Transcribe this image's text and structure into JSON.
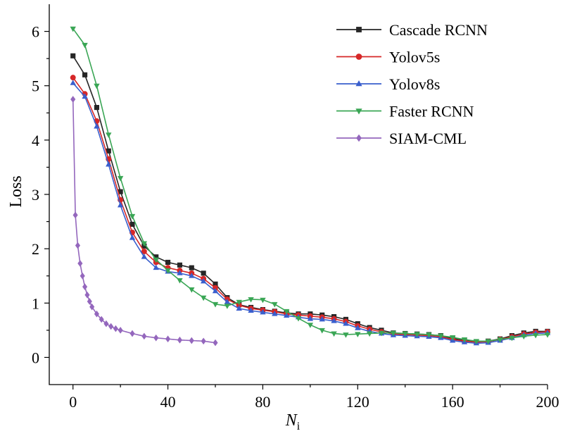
{
  "chart_data": {
    "type": "line",
    "title": "",
    "xlabel": "N",
    "xlabel_sub": "i",
    "ylabel": "Loss",
    "xlim": [
      -10,
      200
    ],
    "ylim": [
      -0.5,
      6.5
    ],
    "xticks": [
      0,
      40,
      80,
      120,
      160,
      200
    ],
    "yticks": [
      0,
      1,
      2,
      3,
      4,
      5,
      6
    ],
    "grid": false,
    "legend_position": "top-right",
    "series": [
      {
        "name": "Cascade RCNN",
        "color": "#262626",
        "marker": "square",
        "x": [
          0,
          5,
          10,
          15,
          20,
          25,
          30,
          35,
          40,
          45,
          50,
          55,
          60,
          65,
          70,
          75,
          80,
          85,
          90,
          95,
          100,
          105,
          110,
          115,
          120,
          125,
          130,
          135,
          140,
          145,
          150,
          155,
          160,
          165,
          170,
          175,
          180,
          185,
          190,
          195,
          200
        ],
        "y": [
          5.55,
          5.2,
          4.6,
          3.8,
          3.05,
          2.45,
          2.05,
          1.85,
          1.75,
          1.7,
          1.65,
          1.55,
          1.35,
          1.1,
          0.97,
          0.92,
          0.88,
          0.85,
          0.82,
          0.8,
          0.8,
          0.78,
          0.75,
          0.7,
          0.62,
          0.55,
          0.5,
          0.45,
          0.44,
          0.43,
          0.42,
          0.4,
          0.35,
          0.31,
          0.29,
          0.3,
          0.34,
          0.4,
          0.45,
          0.48,
          0.48
        ]
      },
      {
        "name": "Yolov5s",
        "color": "#d62728",
        "marker": "circle",
        "x": [
          0,
          5,
          10,
          15,
          20,
          25,
          30,
          35,
          40,
          45,
          50,
          55,
          60,
          65,
          70,
          75,
          80,
          85,
          90,
          95,
          100,
          105,
          110,
          115,
          120,
          125,
          130,
          135,
          140,
          145,
          150,
          155,
          160,
          165,
          170,
          175,
          180,
          185,
          190,
          195,
          200
        ],
        "y": [
          5.15,
          4.85,
          4.35,
          3.65,
          2.9,
          2.3,
          1.95,
          1.75,
          1.65,
          1.6,
          1.55,
          1.45,
          1.28,
          1.07,
          0.96,
          0.9,
          0.87,
          0.84,
          0.8,
          0.78,
          0.76,
          0.74,
          0.71,
          0.66,
          0.58,
          0.52,
          0.47,
          0.43,
          0.42,
          0.41,
          0.4,
          0.38,
          0.33,
          0.3,
          0.28,
          0.29,
          0.33,
          0.38,
          0.43,
          0.46,
          0.47
        ]
      },
      {
        "name": "Yolov8s",
        "color": "#3a5fcd",
        "marker": "triangle-up",
        "x": [
          0,
          5,
          10,
          15,
          20,
          25,
          30,
          35,
          40,
          45,
          50,
          55,
          60,
          65,
          70,
          75,
          80,
          85,
          90,
          95,
          100,
          105,
          110,
          115,
          120,
          125,
          130,
          135,
          140,
          145,
          150,
          155,
          160,
          165,
          170,
          175,
          180,
          185,
          190,
          195,
          200
        ],
        "y": [
          5.05,
          4.8,
          4.25,
          3.55,
          2.8,
          2.2,
          1.85,
          1.65,
          1.58,
          1.55,
          1.5,
          1.4,
          1.22,
          1.02,
          0.9,
          0.86,
          0.83,
          0.8,
          0.77,
          0.74,
          0.71,
          0.7,
          0.67,
          0.62,
          0.54,
          0.48,
          0.44,
          0.41,
          0.4,
          0.39,
          0.38,
          0.36,
          0.31,
          0.28,
          0.26,
          0.27,
          0.31,
          0.36,
          0.41,
          0.44,
          0.45
        ]
      },
      {
        "name": "Faster RCNN",
        "color": "#3aa655",
        "marker": "triangle-down",
        "x": [
          0,
          5,
          10,
          15,
          20,
          25,
          30,
          35,
          40,
          45,
          50,
          55,
          60,
          65,
          70,
          75,
          80,
          85,
          90,
          95,
          100,
          105,
          110,
          115,
          120,
          125,
          130,
          135,
          140,
          145,
          150,
          155,
          160,
          165,
          170,
          175,
          180,
          185,
          190,
          195,
          200
        ],
        "y": [
          6.05,
          5.75,
          5.0,
          4.1,
          3.3,
          2.6,
          2.1,
          1.8,
          1.6,
          1.42,
          1.25,
          1.1,
          0.98,
          0.95,
          1.02,
          1.07,
          1.06,
          0.98,
          0.85,
          0.72,
          0.6,
          0.5,
          0.44,
          0.42,
          0.43,
          0.44,
          0.45,
          0.45,
          0.44,
          0.43,
          0.42,
          0.4,
          0.37,
          0.33,
          0.3,
          0.3,
          0.33,
          0.36,
          0.39,
          0.41,
          0.42
        ]
      },
      {
        "name": "SIAM-CML",
        "color": "#9467bd",
        "marker": "diamond",
        "x": [
          0,
          1,
          2,
          3,
          4,
          5,
          6,
          7,
          8,
          10,
          12,
          14,
          16,
          18,
          20,
          25,
          30,
          35,
          40,
          45,
          50,
          55,
          60
        ],
        "y": [
          4.75,
          2.62,
          2.06,
          1.73,
          1.5,
          1.3,
          1.15,
          1.03,
          0.93,
          0.8,
          0.7,
          0.62,
          0.57,
          0.53,
          0.5,
          0.44,
          0.39,
          0.36,
          0.34,
          0.32,
          0.31,
          0.3,
          0.27
        ]
      }
    ]
  }
}
